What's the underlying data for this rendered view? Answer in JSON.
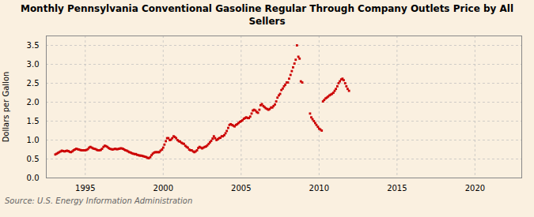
{
  "chart_data": {
    "type": "scatter",
    "title": "Monthly Pennsylvania Conventional Gasoline Regular Through Company Outlets Price by All\nSellers",
    "ylabel": "Dollars per Gallon",
    "source": "Source: U.S. Energy Information Administration",
    "color": "#cc0000",
    "marker": "square",
    "grid": true,
    "xlim": [
      1992.5,
      2023.0
    ],
    "ylim": [
      0.0,
      3.75
    ],
    "xticks": [
      1995,
      2000,
      2005,
      2010,
      2015,
      2020
    ],
    "yticks": [
      {
        "value": 0,
        "label": "0.0"
      },
      0.5,
      {
        "value": 1,
        "label": "1.0"
      },
      1.5,
      {
        "value": 2,
        "label": "2.0"
      },
      2.5,
      {
        "value": 3,
        "label": "3.0"
      },
      3.5
    ],
    "x": [
      1993.08,
      1993.17,
      1993.25,
      1993.33,
      1993.42,
      1993.5,
      1993.58,
      1993.67,
      1993.75,
      1993.83,
      1993.92,
      1994.0,
      1994.08,
      1994.17,
      1994.25,
      1994.33,
      1994.42,
      1994.5,
      1994.58,
      1994.67,
      1994.75,
      1994.83,
      1994.92,
      1995.0,
      1995.08,
      1995.17,
      1995.25,
      1995.33,
      1995.42,
      1995.5,
      1995.58,
      1995.67,
      1995.75,
      1995.83,
      1995.92,
      1996.0,
      1996.08,
      1996.17,
      1996.25,
      1996.33,
      1996.42,
      1996.5,
      1996.58,
      1996.67,
      1996.75,
      1996.83,
      1996.92,
      1997.0,
      1997.08,
      1997.17,
      1997.25,
      1997.33,
      1997.42,
      1997.5,
      1997.58,
      1997.67,
      1997.75,
      1997.83,
      1997.92,
      1998.0,
      1998.08,
      1998.17,
      1998.25,
      1998.33,
      1998.42,
      1998.5,
      1998.58,
      1998.67,
      1998.75,
      1998.83,
      1998.92,
      1999.0,
      1999.08,
      1999.17,
      1999.25,
      1999.33,
      1999.42,
      1999.5,
      1999.58,
      1999.67,
      1999.75,
      1999.83,
      1999.92,
      2000.0,
      2000.08,
      2000.17,
      2000.25,
      2000.33,
      2000.42,
      2000.5,
      2000.58,
      2000.67,
      2000.75,
      2000.83,
      2000.92,
      2001.0,
      2001.08,
      2001.17,
      2001.25,
      2001.33,
      2001.42,
      2001.5,
      2001.58,
      2001.67,
      2001.75,
      2001.83,
      2001.92,
      2002.0,
      2002.08,
      2002.17,
      2002.25,
      2002.33,
      2002.42,
      2002.5,
      2002.58,
      2002.67,
      2002.75,
      2002.83,
      2002.92,
      2003.0,
      2003.08,
      2003.17,
      2003.25,
      2003.33,
      2003.42,
      2003.5,
      2003.58,
      2003.67,
      2003.75,
      2003.83,
      2003.92,
      2004.0,
      2004.08,
      2004.17,
      2004.25,
      2004.33,
      2004.42,
      2004.5,
      2004.58,
      2004.67,
      2004.75,
      2004.83,
      2004.92,
      2005.0,
      2005.08,
      2005.17,
      2005.25,
      2005.33,
      2005.42,
      2005.5,
      2005.58,
      2005.67,
      2005.75,
      2005.83,
      2005.92,
      2006.0,
      2006.08,
      2006.17,
      2006.25,
      2006.33,
      2006.42,
      2006.5,
      2006.58,
      2006.67,
      2006.75,
      2006.83,
      2006.92,
      2007.0,
      2007.08,
      2007.17,
      2007.25,
      2007.33,
      2007.42,
      2007.5,
      2007.58,
      2007.67,
      2007.75,
      2007.83,
      2007.92,
      2008.0,
      2008.08,
      2008.17,
      2008.25,
      2008.33,
      2008.42,
      2008.5,
      2008.58,
      2008.67,
      2008.75,
      2008.83,
      2008.92,
      2009.42,
      2009.5,
      2009.58,
      2009.67,
      2009.75,
      2009.83,
      2009.92,
      2010.0,
      2010.08,
      2010.17,
      2010.25,
      2010.33,
      2010.42,
      2010.5,
      2010.58,
      2010.67,
      2010.75,
      2010.83,
      2010.92,
      2011.0,
      2011.08,
      2011.17,
      2011.25,
      2011.33,
      2011.42,
      2011.5,
      2011.58,
      2011.67,
      2011.75,
      2011.83,
      2011.92
    ],
    "values": [
      0.62,
      0.64,
      0.66,
      0.68,
      0.7,
      0.72,
      0.71,
      0.7,
      0.71,
      0.72,
      0.71,
      0.69,
      0.68,
      0.7,
      0.73,
      0.75,
      0.77,
      0.76,
      0.75,
      0.74,
      0.73,
      0.73,
      0.73,
      0.73,
      0.74,
      0.76,
      0.8,
      0.82,
      0.8,
      0.78,
      0.77,
      0.76,
      0.74,
      0.73,
      0.73,
      0.74,
      0.77,
      0.82,
      0.85,
      0.84,
      0.82,
      0.79,
      0.77,
      0.76,
      0.75,
      0.76,
      0.77,
      0.76,
      0.76,
      0.77,
      0.78,
      0.78,
      0.77,
      0.75,
      0.73,
      0.72,
      0.7,
      0.68,
      0.67,
      0.65,
      0.64,
      0.63,
      0.63,
      0.61,
      0.6,
      0.59,
      0.59,
      0.58,
      0.57,
      0.56,
      0.55,
      0.53,
      0.52,
      0.55,
      0.6,
      0.64,
      0.67,
      0.68,
      0.68,
      0.68,
      0.68,
      0.72,
      0.75,
      0.8,
      0.88,
      0.97,
      1.05,
      1.05,
      1.0,
      1.01,
      1.05,
      1.1,
      1.08,
      1.05,
      1.0,
      0.97,
      0.96,
      0.93,
      0.91,
      0.9,
      0.85,
      0.82,
      0.8,
      0.75,
      0.73,
      0.73,
      0.7,
      0.68,
      0.7,
      0.73,
      0.79,
      0.82,
      0.8,
      0.78,
      0.8,
      0.82,
      0.83,
      0.86,
      0.9,
      0.94,
      0.98,
      1.04,
      1.1,
      1.05,
      1.0,
      1.02,
      1.05,
      1.06,
      1.1,
      1.1,
      1.13,
      1.18,
      1.24,
      1.32,
      1.4,
      1.42,
      1.4,
      1.38,
      1.36,
      1.4,
      1.42,
      1.45,
      1.48,
      1.5,
      1.52,
      1.56,
      1.58,
      1.6,
      1.58,
      1.58,
      1.62,
      1.7,
      1.78,
      1.8,
      1.78,
      1.74,
      1.72,
      1.8,
      1.92,
      1.95,
      1.9,
      1.87,
      1.84,
      1.82,
      1.8,
      1.82,
      1.86,
      1.86,
      1.9,
      1.94,
      2.02,
      2.12,
      2.18,
      2.22,
      2.32,
      2.36,
      2.42,
      2.46,
      2.52,
      2.52,
      2.62,
      2.72,
      2.82,
      2.92,
      3.02,
      3.12,
      3.5,
      3.2,
      3.15,
      2.55,
      2.52,
      1.7,
      1.6,
      1.55,
      1.5,
      1.45,
      1.4,
      1.35,
      1.3,
      1.28,
      1.25,
      2.02,
      2.06,
      2.1,
      2.12,
      2.15,
      2.18,
      2.2,
      2.22,
      2.25,
      2.3,
      2.35,
      2.42,
      2.5,
      2.55,
      2.6,
      2.62,
      2.58,
      2.5,
      2.42,
      2.35,
      2.3
    ]
  }
}
